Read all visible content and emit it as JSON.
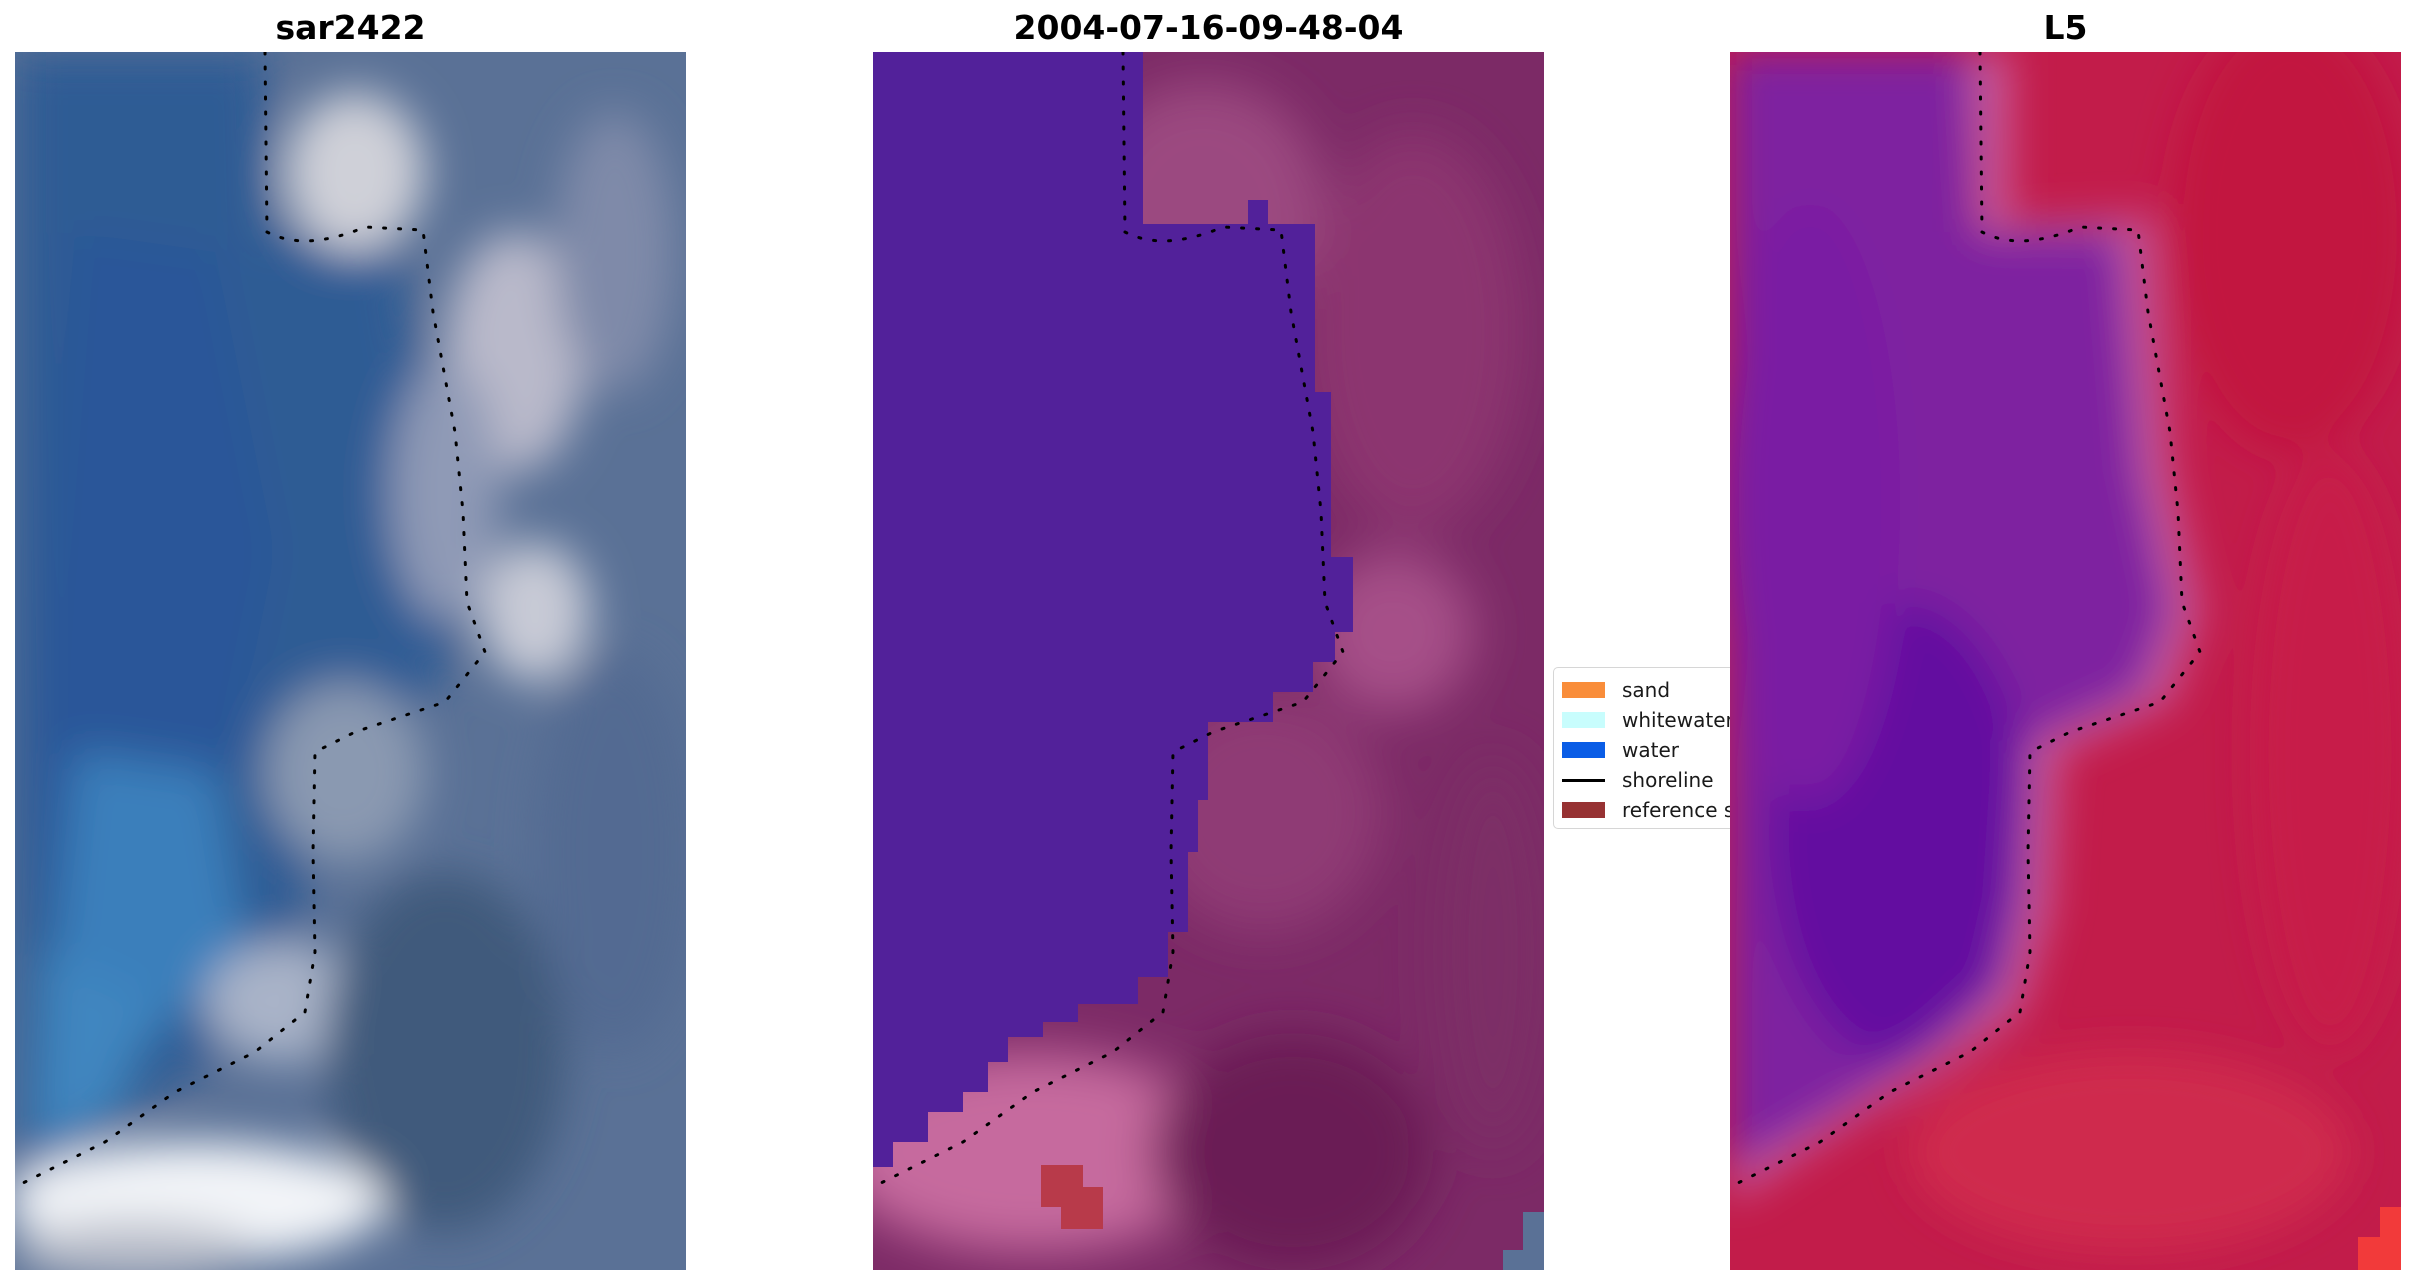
{
  "panels": [
    {
      "title": "sar2422"
    },
    {
      "title": "2004-07-16-09-48-04"
    },
    {
      "title": "L5"
    }
  ],
  "legend": {
    "items": [
      {
        "label": "sand",
        "color": "#f98d3a",
        "kind": "patch"
      },
      {
        "label": "whitewater",
        "color": "#c8fdfd",
        "kind": "patch"
      },
      {
        "label": "water",
        "color": "#0a5de6",
        "kind": "patch"
      },
      {
        "label": "shoreline",
        "color": "#000000",
        "kind": "line"
      },
      {
        "label": "reference shoreline",
        "color": "#973233",
        "kind": "patch"
      }
    ]
  }
}
